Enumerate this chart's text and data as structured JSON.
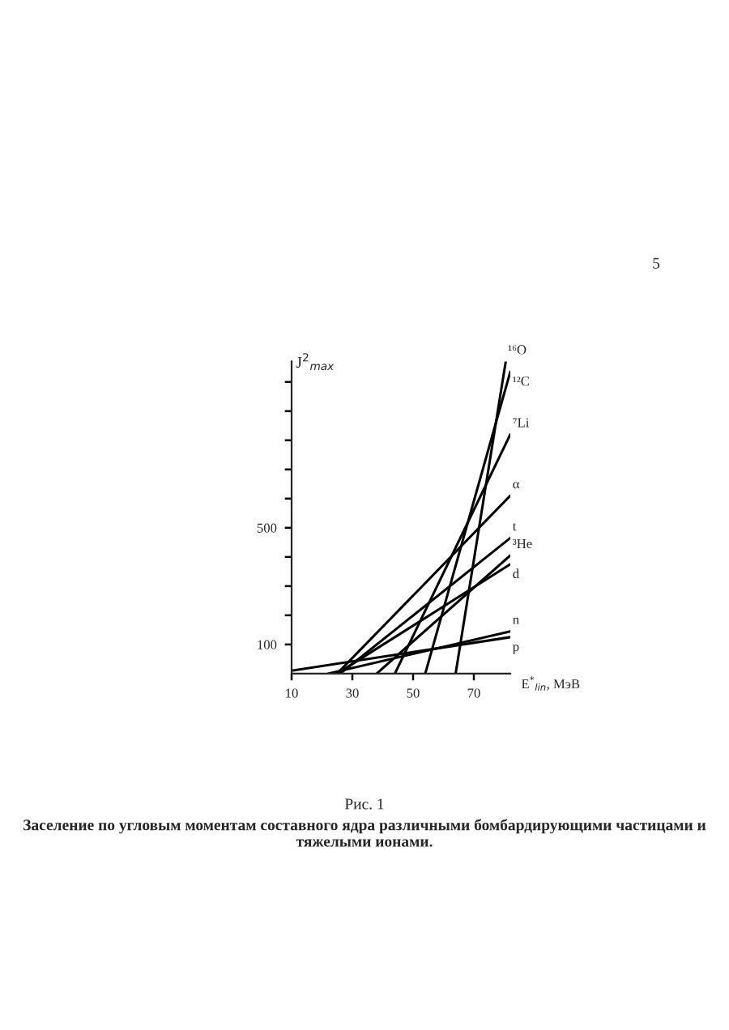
{
  "chart_data": {
    "type": "line",
    "xlabel": "E$^{*}$$_{lin}$, МэВ",
    "ylabel": "J$^{2}$$_{max}$",
    "annotations": [
      "5",
      "Рис. 1",
      "Заселение по угловым моментам составного ядра различными бомбардирующими частицами и тяжелыми ионами."
    ],
    "xlim": [
      10,
      82
    ],
    "xticks": [
      10,
      30,
      50,
      70
    ],
    "ylim": [
      0,
      1070
    ],
    "yticks": [
      {
        "value": 100,
        "label": "100"
      },
      {
        "value": 200,
        "label": null
      },
      {
        "value": 300,
        "label": null
      },
      {
        "value": 400,
        "label": null
      },
      {
        "value": 500,
        "label": "500"
      },
      {
        "value": 600,
        "label": null
      },
      {
        "value": 700,
        "label": null
      },
      {
        "value": 800,
        "label": null
      },
      {
        "value": 900,
        "label": null
      },
      {
        "value": 1000,
        "label": null
      }
    ],
    "grid": false,
    "legend": false,
    "marker": "none",
    "line_style": "solid",
    "series": [
      {
        "name": "¹⁶O",
        "color": "#000000",
        "x": [
          64,
          80.5
        ],
        "values": [
          0,
          1070
        ]
      },
      {
        "name": "¹²C",
        "color": "#000000",
        "x": [
          54,
          82
        ],
        "values": [
          0,
          1035
        ]
      },
      {
        "name": "⁷Li",
        "color": "#000000",
        "x": [
          44,
          82
        ],
        "values": [
          0,
          820
        ]
      },
      {
        "name": "α",
        "color": "#000000",
        "x": [
          25,
          82
        ],
        "values": [
          0,
          610
        ]
      },
      {
        "name": "t",
        "color": "#000000",
        "x": [
          26,
          82
        ],
        "values": [
          0,
          465
        ]
      },
      {
        "name": "³He",
        "color": "#000000",
        "x": [
          38,
          82
        ],
        "values": [
          0,
          405
        ]
      },
      {
        "name": "d",
        "color": "#000000",
        "x": [
          25,
          82
        ],
        "values": [
          0,
          375
        ]
      },
      {
        "name": "n",
        "color": "#000000",
        "x": [
          22,
          82
        ],
        "values": [
          0,
          145
        ]
      },
      {
        "name": "p",
        "color": "#000000",
        "x": [
          10,
          82
        ],
        "values": [
          10,
          125
        ]
      }
    ]
  }
}
